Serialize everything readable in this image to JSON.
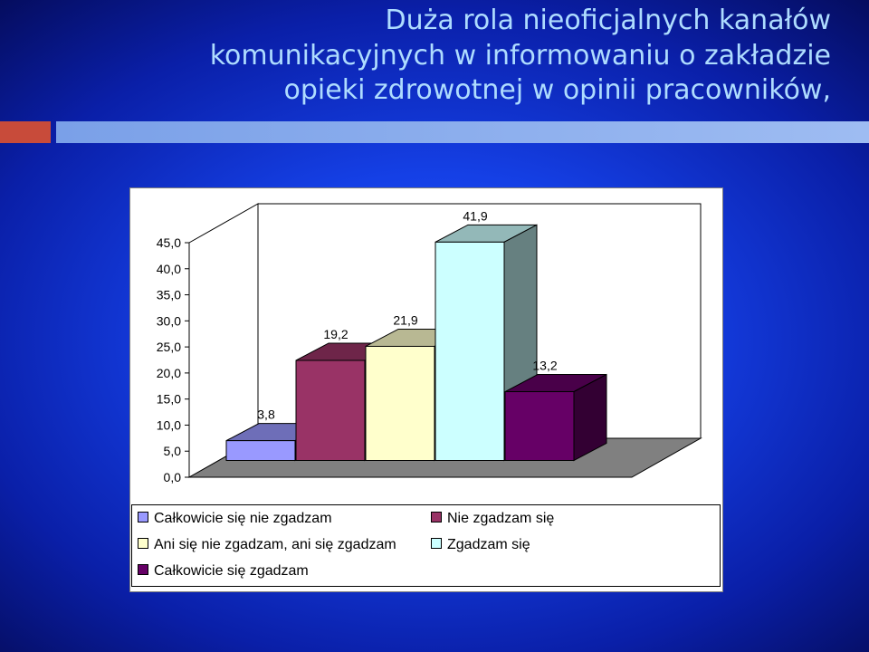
{
  "title_lines": [
    "Duża rola nieoficjalnych kanałów",
    "komunikacyjnych w informowaniu o zakładzie",
    "opieki zdrowotnej w opinii pracowników,"
  ],
  "chart_data": {
    "type": "bar",
    "style": "3d",
    "ylim": [
      0,
      45
    ],
    "yticks": [
      "0,0",
      "5,0",
      "10,0",
      "15,0",
      "20,0",
      "25,0",
      "30,0",
      "35,0",
      "40,0",
      "45,0"
    ],
    "grid": false,
    "legend_position": "bottom",
    "series": [
      {
        "name": "Całkowicie się nie zgadzam",
        "value": 3.8,
        "label": "3,8",
        "color": "#9999ff"
      },
      {
        "name": "Nie zgadzam się",
        "value": 19.2,
        "label": "19,2",
        "color": "#993366"
      },
      {
        "name": "Ani się nie zgadzam, ani się zgadzam",
        "value": 21.9,
        "label": "21,9",
        "color": "#ffffcc"
      },
      {
        "name": "Zgadzam się",
        "value": 41.9,
        "label": "41,9",
        "color": "#ccffff"
      },
      {
        "name": "Całkowicie się zgadzam",
        "value": 13.2,
        "label": "13,2",
        "color": "#660066"
      }
    ]
  }
}
